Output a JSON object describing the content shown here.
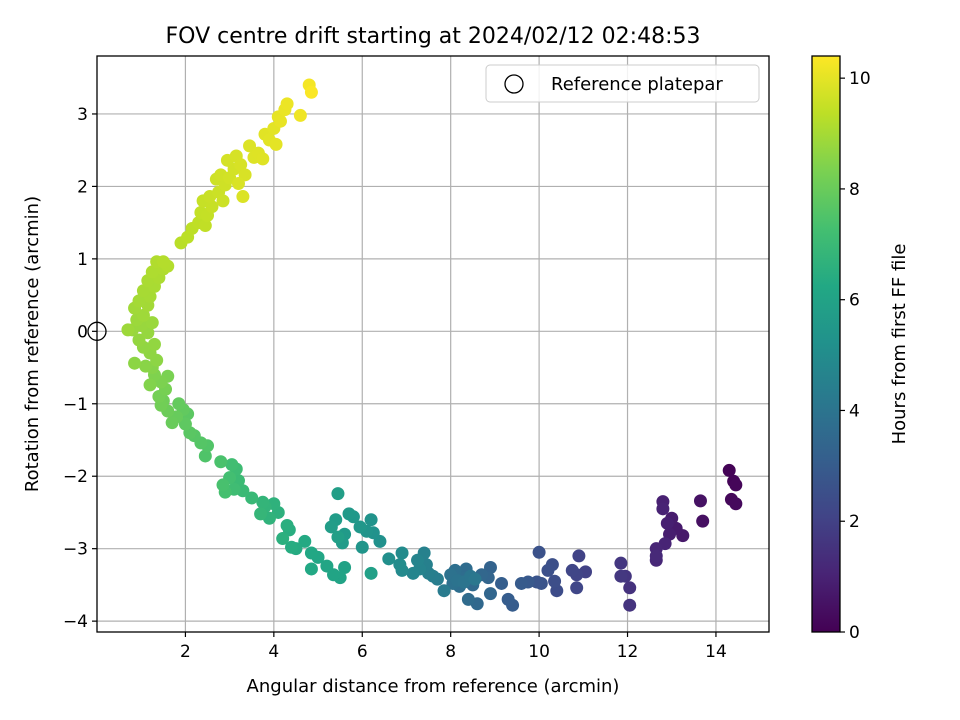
{
  "chart_data": {
    "type": "scatter",
    "title": "FOV centre drift starting at 2024/02/12 02:48:53",
    "xlabel": "Angular distance from reference (arcmin)",
    "ylabel": "Rotation from reference (arcmin)",
    "xlim": [
      0,
      15.2
    ],
    "ylim": [
      -4.15,
      3.8
    ],
    "xticks": [
      "2",
      "4",
      "6",
      "8",
      "10",
      "12",
      "14"
    ],
    "yticks": [
      "−4",
      "−3",
      "−2",
      "−1",
      "0",
      "1",
      "2",
      "3"
    ],
    "grid": true,
    "legend": {
      "placement": "top-right",
      "entries": [
        "Reference platepar"
      ]
    },
    "reference_point": {
      "x": 0,
      "y": 0
    },
    "colorbar": {
      "label": "Hours from first FF file",
      "range": [
        0,
        10.4
      ],
      "ticks": [
        "0",
        "2",
        "4",
        "6",
        "8",
        "10"
      ],
      "colormap": "viridis"
    },
    "series": [
      {
        "points": [
          {
            "x": 14.3,
            "y": -1.92,
            "t": 0.05
          },
          {
            "x": 14.4,
            "y": -2.07,
            "t": 0.1
          },
          {
            "x": 14.45,
            "y": -2.12,
            "t": 0.15
          },
          {
            "x": 14.35,
            "y": -2.32,
            "t": 0.2
          },
          {
            "x": 14.45,
            "y": -2.38,
            "t": 0.25
          },
          {
            "x": 13.7,
            "y": -2.62,
            "t": 0.45
          },
          {
            "x": 13.65,
            "y": -2.34,
            "t": 0.5
          },
          {
            "x": 13.25,
            "y": -2.82,
            "t": 0.7
          },
          {
            "x": 13.1,
            "y": -2.72,
            "t": 0.75
          },
          {
            "x": 13.0,
            "y": -2.58,
            "t": 0.8
          },
          {
            "x": 12.95,
            "y": -2.8,
            "t": 0.85
          },
          {
            "x": 12.9,
            "y": -2.65,
            "t": 0.9
          },
          {
            "x": 12.8,
            "y": -2.35,
            "t": 0.95
          },
          {
            "x": 12.8,
            "y": -2.45,
            "t": 1.0
          },
          {
            "x": 12.85,
            "y": -2.93,
            "t": 1.05
          },
          {
            "x": 12.65,
            "y": -3.0,
            "t": 1.1
          },
          {
            "x": 12.65,
            "y": -3.16,
            "t": 1.15
          },
          {
            "x": 12.65,
            "y": -3.1,
            "t": 1.2
          },
          {
            "x": 12.05,
            "y": -3.54,
            "t": 1.5
          },
          {
            "x": 12.05,
            "y": -3.78,
            "t": 1.55
          },
          {
            "x": 11.95,
            "y": -3.38,
            "t": 1.6
          },
          {
            "x": 11.85,
            "y": -3.2,
            "t": 1.65
          },
          {
            "x": 11.85,
            "y": -3.38,
            "t": 1.7
          },
          {
            "x": 11.05,
            "y": -3.32,
            "t": 2.0
          },
          {
            "x": 10.9,
            "y": -3.1,
            "t": 2.05
          },
          {
            "x": 10.85,
            "y": -3.36,
            "t": 2.1
          },
          {
            "x": 10.75,
            "y": -3.3,
            "t": 2.15
          },
          {
            "x": 10.85,
            "y": -3.54,
            "t": 2.2
          },
          {
            "x": 10.4,
            "y": -3.58,
            "t": 2.4
          },
          {
            "x": 10.35,
            "y": -3.45,
            "t": 2.45
          },
          {
            "x": 10.3,
            "y": -3.22,
            "t": 2.5
          },
          {
            "x": 10.2,
            "y": -3.3,
            "t": 2.55
          },
          {
            "x": 10.0,
            "y": -3.05,
            "t": 2.6
          },
          {
            "x": 10.05,
            "y": -3.48,
            "t": 2.65
          },
          {
            "x": 9.95,
            "y": -3.46,
            "t": 2.7
          },
          {
            "x": 9.75,
            "y": -3.46,
            "t": 2.9
          },
          {
            "x": 9.6,
            "y": -3.48,
            "t": 2.95
          },
          {
            "x": 9.4,
            "y": -3.78,
            "t": 3.0
          },
          {
            "x": 9.3,
            "y": -3.7,
            "t": 3.05
          },
          {
            "x": 9.15,
            "y": -3.48,
            "t": 3.1
          },
          {
            "x": 8.9,
            "y": -3.26,
            "t": 3.3
          },
          {
            "x": 8.85,
            "y": -3.4,
            "t": 3.35
          },
          {
            "x": 8.9,
            "y": -3.62,
            "t": 3.4
          },
          {
            "x": 8.7,
            "y": -3.36,
            "t": 3.45
          },
          {
            "x": 8.6,
            "y": -3.76,
            "t": 3.5
          },
          {
            "x": 8.5,
            "y": -3.5,
            "t": 3.55
          },
          {
            "x": 8.4,
            "y": -3.7,
            "t": 3.6
          },
          {
            "x": 8.35,
            "y": -3.28,
            "t": 3.65
          },
          {
            "x": 8.25,
            "y": -3.4,
            "t": 3.7
          },
          {
            "x": 8.2,
            "y": -3.52,
            "t": 3.75
          },
          {
            "x": 8.1,
            "y": -3.3,
            "t": 3.8
          },
          {
            "x": 8.05,
            "y": -3.48,
            "t": 3.85
          },
          {
            "x": 8.0,
            "y": -3.36,
            "t": 3.9
          },
          {
            "x": 8.15,
            "y": -3.44,
            "t": 3.95
          },
          {
            "x": 8.3,
            "y": -3.46,
            "t": 4.0
          },
          {
            "x": 8.45,
            "y": -3.38,
            "t": 4.05
          },
          {
            "x": 8.55,
            "y": -3.42,
            "t": 4.1
          },
          {
            "x": 7.85,
            "y": -3.58,
            "t": 4.3
          },
          {
            "x": 7.7,
            "y": -3.42,
            "t": 4.35
          },
          {
            "x": 7.6,
            "y": -3.38,
            "t": 4.4
          },
          {
            "x": 7.5,
            "y": -3.34,
            "t": 4.45
          },
          {
            "x": 7.45,
            "y": -3.22,
            "t": 4.5
          },
          {
            "x": 7.4,
            "y": -3.06,
            "t": 4.55
          },
          {
            "x": 7.3,
            "y": -3.28,
            "t": 4.6
          },
          {
            "x": 7.25,
            "y": -3.16,
            "t": 4.65
          },
          {
            "x": 7.15,
            "y": -3.34,
            "t": 4.7
          },
          {
            "x": 6.9,
            "y": -3.3,
            "t": 4.9
          },
          {
            "x": 6.9,
            "y": -3.06,
            "t": 4.95
          },
          {
            "x": 6.85,
            "y": -3.22,
            "t": 5.0
          },
          {
            "x": 6.6,
            "y": -3.14,
            "t": 5.1
          },
          {
            "x": 6.4,
            "y": -2.9,
            "t": 5.2
          },
          {
            "x": 6.25,
            "y": -2.78,
            "t": 5.25
          },
          {
            "x": 6.2,
            "y": -2.6,
            "t": 5.3
          },
          {
            "x": 6.1,
            "y": -2.76,
            "t": 5.35
          },
          {
            "x": 6.0,
            "y": -2.98,
            "t": 5.4
          },
          {
            "x": 5.95,
            "y": -2.7,
            "t": 5.45
          },
          {
            "x": 5.8,
            "y": -2.56,
            "t": 5.5
          },
          {
            "x": 5.7,
            "y": -2.52,
            "t": 5.55
          },
          {
            "x": 5.6,
            "y": -2.8,
            "t": 5.6
          },
          {
            "x": 5.55,
            "y": -2.92,
            "t": 5.65
          },
          {
            "x": 5.4,
            "y": -2.6,
            "t": 5.7
          },
          {
            "x": 5.3,
            "y": -2.7,
            "t": 5.75
          },
          {
            "x": 5.45,
            "y": -2.24,
            "t": 5.8
          },
          {
            "x": 5.45,
            "y": -2.84,
            "t": 5.85
          },
          {
            "x": 6.2,
            "y": -3.34,
            "t": 5.9
          },
          {
            "x": 5.6,
            "y": -3.26,
            "t": 5.95
          },
          {
            "x": 5.5,
            "y": -3.4,
            "t": 6.0
          },
          {
            "x": 5.35,
            "y": -3.36,
            "t": 6.05
          },
          {
            "x": 5.2,
            "y": -3.24,
            "t": 6.1
          },
          {
            "x": 5.0,
            "y": -3.12,
            "t": 6.15
          },
          {
            "x": 4.85,
            "y": -3.06,
            "t": 6.2
          },
          {
            "x": 4.85,
            "y": -3.28,
            "t": 6.25
          },
          {
            "x": 4.7,
            "y": -2.9,
            "t": 6.3
          },
          {
            "x": 4.5,
            "y": -3.0,
            "t": 6.35
          },
          {
            "x": 4.4,
            "y": -2.98,
            "t": 6.4
          },
          {
            "x": 4.35,
            "y": -2.74,
            "t": 6.45
          },
          {
            "x": 4.3,
            "y": -2.68,
            "t": 6.5
          },
          {
            "x": 4.2,
            "y": -2.86,
            "t": 6.55
          },
          {
            "x": 4.1,
            "y": -2.5,
            "t": 6.6
          },
          {
            "x": 4.0,
            "y": -2.38,
            "t": 6.65
          },
          {
            "x": 3.9,
            "y": -2.58,
            "t": 6.7
          },
          {
            "x": 3.8,
            "y": -2.42,
            "t": 6.75
          },
          {
            "x": 3.75,
            "y": -2.36,
            "t": 6.8
          },
          {
            "x": 3.7,
            "y": -2.52,
            "t": 6.85
          },
          {
            "x": 3.5,
            "y": -2.3,
            "t": 6.95
          },
          {
            "x": 3.3,
            "y": -2.2,
            "t": 7.0
          },
          {
            "x": 3.2,
            "y": -2.06,
            "t": 7.05
          },
          {
            "x": 3.15,
            "y": -1.9,
            "t": 7.1
          },
          {
            "x": 3.1,
            "y": -2.18,
            "t": 7.15
          },
          {
            "x": 3.05,
            "y": -1.84,
            "t": 7.2
          },
          {
            "x": 3.0,
            "y": -2.02,
            "t": 7.25
          },
          {
            "x": 2.9,
            "y": -2.22,
            "t": 7.3
          },
          {
            "x": 2.85,
            "y": -2.12,
            "t": 7.35
          },
          {
            "x": 2.8,
            "y": -1.8,
            "t": 7.4
          },
          {
            "x": 2.45,
            "y": -1.72,
            "t": 7.5
          },
          {
            "x": 2.5,
            "y": -1.58,
            "t": 7.55
          },
          {
            "x": 2.35,
            "y": -1.54,
            "t": 7.6
          },
          {
            "x": 2.2,
            "y": -1.44,
            "t": 7.65
          },
          {
            "x": 2.1,
            "y": -1.4,
            "t": 7.7
          },
          {
            "x": 2.05,
            "y": -1.14,
            "t": 7.75
          },
          {
            "x": 2.0,
            "y": -1.28,
            "t": 7.8
          },
          {
            "x": 1.95,
            "y": -1.08,
            "t": 7.85
          },
          {
            "x": 1.85,
            "y": -1.0,
            "t": 7.9
          },
          {
            "x": 1.8,
            "y": -1.18,
            "t": 7.95
          },
          {
            "x": 1.7,
            "y": -1.26,
            "t": 8.0
          },
          {
            "x": 1.6,
            "y": -1.1,
            "t": 8.05
          },
          {
            "x": 1.5,
            "y": -0.96,
            "t": 8.1
          },
          {
            "x": 1.45,
            "y": -1.02,
            "t": 8.15
          },
          {
            "x": 1.4,
            "y": -0.9,
            "t": 8.2
          },
          {
            "x": 1.55,
            "y": -0.8,
            "t": 8.25
          },
          {
            "x": 1.6,
            "y": -0.62,
            "t": 8.3
          },
          {
            "x": 1.45,
            "y": -0.7,
            "t": 8.35
          },
          {
            "x": 1.3,
            "y": -0.6,
            "t": 8.4
          },
          {
            "x": 1.2,
            "y": -0.74,
            "t": 8.45
          },
          {
            "x": 1.25,
            "y": -0.5,
            "t": 8.5
          },
          {
            "x": 1.1,
            "y": -0.48,
            "t": 8.55
          },
          {
            "x": 0.85,
            "y": -0.44,
            "t": 8.6
          },
          {
            "x": 1.35,
            "y": -0.4,
            "t": 8.62
          },
          {
            "x": 1.2,
            "y": -0.3,
            "t": 8.65
          },
          {
            "x": 1.05,
            "y": -0.22,
            "t": 8.68
          },
          {
            "x": 1.3,
            "y": -0.18,
            "t": 8.7
          },
          {
            "x": 0.95,
            "y": -0.12,
            "t": 8.72
          },
          {
            "x": 1.15,
            "y": -0.02,
            "t": 8.75
          },
          {
            "x": 0.8,
            "y": 0.02,
            "t": 8.78
          },
          {
            "x": 1.0,
            "y": 0.08,
            "t": 8.8
          },
          {
            "x": 1.25,
            "y": 0.12,
            "t": 8.82
          },
          {
            "x": 0.9,
            "y": 0.16,
            "t": 8.85
          },
          {
            "x": 0.7,
            "y": 0.02,
            "t": 8.87
          },
          {
            "x": 1.05,
            "y": 0.22,
            "t": 8.9
          },
          {
            "x": 0.85,
            "y": 0.32,
            "t": 8.92
          },
          {
            "x": 1.15,
            "y": 0.36,
            "t": 8.95
          },
          {
            "x": 0.95,
            "y": 0.42,
            "t": 8.97
          },
          {
            "x": 1.2,
            "y": 0.48,
            "t": 9.0
          },
          {
            "x": 1.05,
            "y": 0.56,
            "t": 9.02
          },
          {
            "x": 1.3,
            "y": 0.62,
            "t": 9.05
          },
          {
            "x": 1.15,
            "y": 0.7,
            "t": 9.07
          },
          {
            "x": 1.4,
            "y": 0.74,
            "t": 9.1
          },
          {
            "x": 1.25,
            "y": 0.82,
            "t": 9.12
          },
          {
            "x": 1.5,
            "y": 0.86,
            "t": 9.15
          },
          {
            "x": 1.35,
            "y": 0.96,
            "t": 9.17
          },
          {
            "x": 1.6,
            "y": 0.9,
            "t": 9.2
          },
          {
            "x": 1.5,
            "y": 0.96,
            "t": 9.22
          },
          {
            "x": 1.9,
            "y": 1.22,
            "t": 9.3
          },
          {
            "x": 2.05,
            "y": 1.3,
            "t": 9.33
          },
          {
            "x": 2.15,
            "y": 1.42,
            "t": 9.36
          },
          {
            "x": 2.3,
            "y": 1.5,
            "t": 9.39
          },
          {
            "x": 2.45,
            "y": 1.46,
            "t": 9.42
          },
          {
            "x": 2.35,
            "y": 1.64,
            "t": 9.45
          },
          {
            "x": 2.5,
            "y": 1.6,
            "t": 9.48
          },
          {
            "x": 2.4,
            "y": 1.8,
            "t": 9.5
          },
          {
            "x": 2.6,
            "y": 1.72,
            "t": 9.52
          },
          {
            "x": 2.55,
            "y": 1.86,
            "t": 9.55
          },
          {
            "x": 2.75,
            "y": 1.92,
            "t": 9.58
          },
          {
            "x": 2.85,
            "y": 1.8,
            "t": 9.6
          },
          {
            "x": 2.7,
            "y": 2.1,
            "t": 9.62
          },
          {
            "x": 2.9,
            "y": 2.02,
            "t": 9.65
          },
          {
            "x": 2.8,
            "y": 2.16,
            "t": 9.67
          },
          {
            "x": 3.0,
            "y": 2.12,
            "t": 9.7
          },
          {
            "x": 3.1,
            "y": 2.24,
            "t": 9.72
          },
          {
            "x": 2.95,
            "y": 2.36,
            "t": 9.74
          },
          {
            "x": 3.15,
            "y": 2.42,
            "t": 9.76
          },
          {
            "x": 3.25,
            "y": 2.3,
            "t": 9.78
          },
          {
            "x": 3.35,
            "y": 2.16,
            "t": 9.8
          },
          {
            "x": 3.2,
            "y": 2.04,
            "t": 9.82
          },
          {
            "x": 3.3,
            "y": 1.86,
            "t": 9.84
          },
          {
            "x": 3.45,
            "y": 2.56,
            "t": 9.86
          },
          {
            "x": 3.55,
            "y": 2.4,
            "t": 9.88
          },
          {
            "x": 3.65,
            "y": 2.46,
            "t": 9.9
          },
          {
            "x": 3.75,
            "y": 2.38,
            "t": 9.92
          },
          {
            "x": 3.8,
            "y": 2.72,
            "t": 9.94
          },
          {
            "x": 3.9,
            "y": 2.64,
            "t": 9.96
          },
          {
            "x": 4.0,
            "y": 2.8,
            "t": 9.98
          },
          {
            "x": 4.05,
            "y": 2.58,
            "t": 10.0
          },
          {
            "x": 4.1,
            "y": 2.96,
            "t": 10.03
          },
          {
            "x": 4.15,
            "y": 2.9,
            "t": 10.06
          },
          {
            "x": 4.25,
            "y": 3.06,
            "t": 10.09
          },
          {
            "x": 4.3,
            "y": 3.14,
            "t": 10.12
          },
          {
            "x": 4.6,
            "y": 2.98,
            "t": 10.18
          },
          {
            "x": 4.8,
            "y": 3.4,
            "t": 10.25
          },
          {
            "x": 4.85,
            "y": 3.3,
            "t": 10.35
          }
        ]
      }
    ]
  }
}
